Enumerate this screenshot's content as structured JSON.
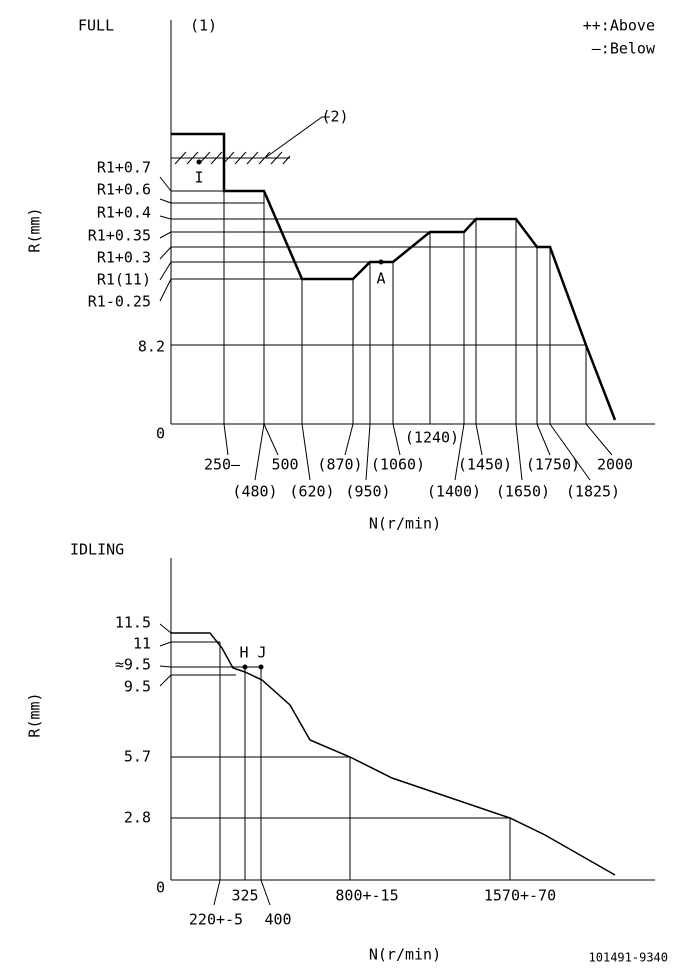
{
  "full": {
    "title": "FULL",
    "note": "(1)",
    "legend": [
      "++:Above",
      "—:Below"
    ],
    "callout": "(2)",
    "y_labels": [
      "R1+0.7",
      "R1+0.6",
      "R1+0.4",
      "R1+0.35",
      "R1+0.3",
      "R1(11)",
      "R1-0.25",
      "8.2",
      "0"
    ],
    "x_labels": [
      "250—",
      "(480)",
      "500",
      "(620)",
      "(870)",
      "(950)",
      "(1060)",
      "(1240)",
      "(1400)",
      "(1450)",
      "(1650)",
      "(1750)",
      "(1825)",
      "2000"
    ],
    "points": [
      "I",
      "A"
    ],
    "y_axis": "R(mm)",
    "x_axis": "N(r/min)"
  },
  "idling": {
    "title": "IDLING",
    "y_labels": [
      "11.5",
      "11",
      "≈9.5",
      "9.5",
      "5.7",
      "2.8",
      "0"
    ],
    "x_labels": [
      "220+-5",
      "325",
      "400",
      "800+-15",
      "1570+-70"
    ],
    "points": [
      "H",
      "J"
    ],
    "y_axis": "R(mm)",
    "x_axis": "N(r/min)"
  },
  "footer": "101491-9340"
}
